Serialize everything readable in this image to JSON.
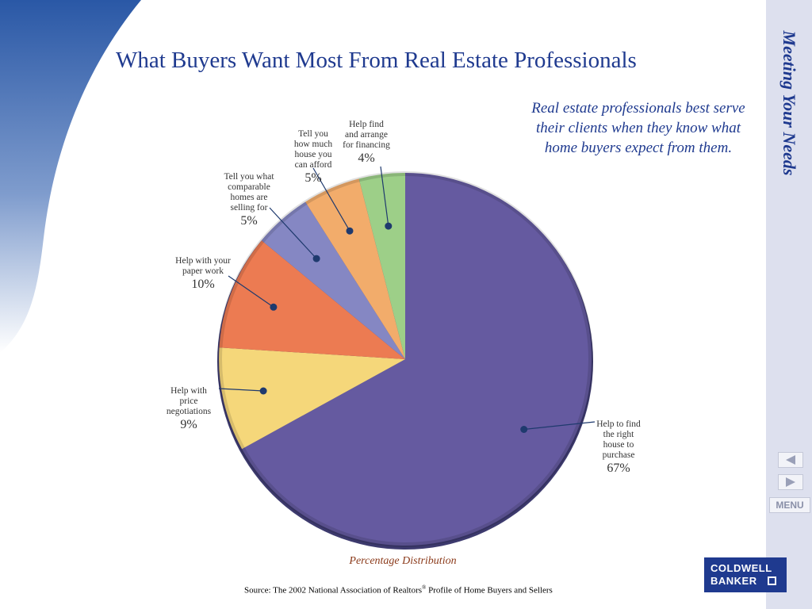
{
  "slide": {
    "title": "What Buyers Want Most From Real Estate Professionals",
    "caption": "Real estate professionals best serve their clients when they know what home buyers expect from them.",
    "source_text": "Source:  The 2002 National Association of Realtors",
    "source_sup": "®",
    "source_text_end": " Profile of Home Buyers and Sellers"
  },
  "sidebar": {
    "title": "Meeting Your Needs",
    "menu_label": "MENU",
    "prev_icon": "triangle-left-icon",
    "next_icon": "triangle-right-icon"
  },
  "logo": {
    "line1": "COLDWELL",
    "line2": "BANKER"
  },
  "colors": {
    "title": "#1f3a8f",
    "sidebar_bg": "#dde0ee",
    "label_text": "#333333",
    "distribution_label": "#8b3a1a"
  },
  "chart_data": {
    "type": "pie",
    "title": "",
    "subtitle": "Percentage Distribution",
    "slices": [
      {
        "label": "Help to find the right house to purchase",
        "value": 67,
        "value_label": "67%",
        "color": "#655aa0",
        "label_lines": [
          "Help to find",
          "the right",
          "house to",
          "purchase"
        ]
      },
      {
        "label": "Help with price negotiations",
        "value": 9,
        "value_label": "9%",
        "color": "#f5d77a",
        "label_lines": [
          "Help with",
          "price",
          "negotiations"
        ]
      },
      {
        "label": "Help with your paper work",
        "value": 10,
        "value_label": "10%",
        "color": "#ec7b52",
        "label_lines": [
          "Help with your",
          "paper work"
        ]
      },
      {
        "label": "Tell you what comparable homes are selling for",
        "value": 5,
        "value_label": "5%",
        "color": "#8587c3",
        "label_lines": [
          "Tell you what",
          "comparable",
          "homes are",
          "selling for"
        ]
      },
      {
        "label": "Tell you how much house you can afford",
        "value": 5,
        "value_label": "5%",
        "color": "#f2ac6b",
        "label_lines": [
          "Tell you",
          "how much",
          "house you",
          "can afford"
        ]
      },
      {
        "label": "Help find and arrange for financing",
        "value": 4,
        "value_label": "4%",
        "color": "#9dcf88",
        "label_lines": [
          "Help find",
          "and arrange",
          "for financing"
        ]
      }
    ]
  }
}
